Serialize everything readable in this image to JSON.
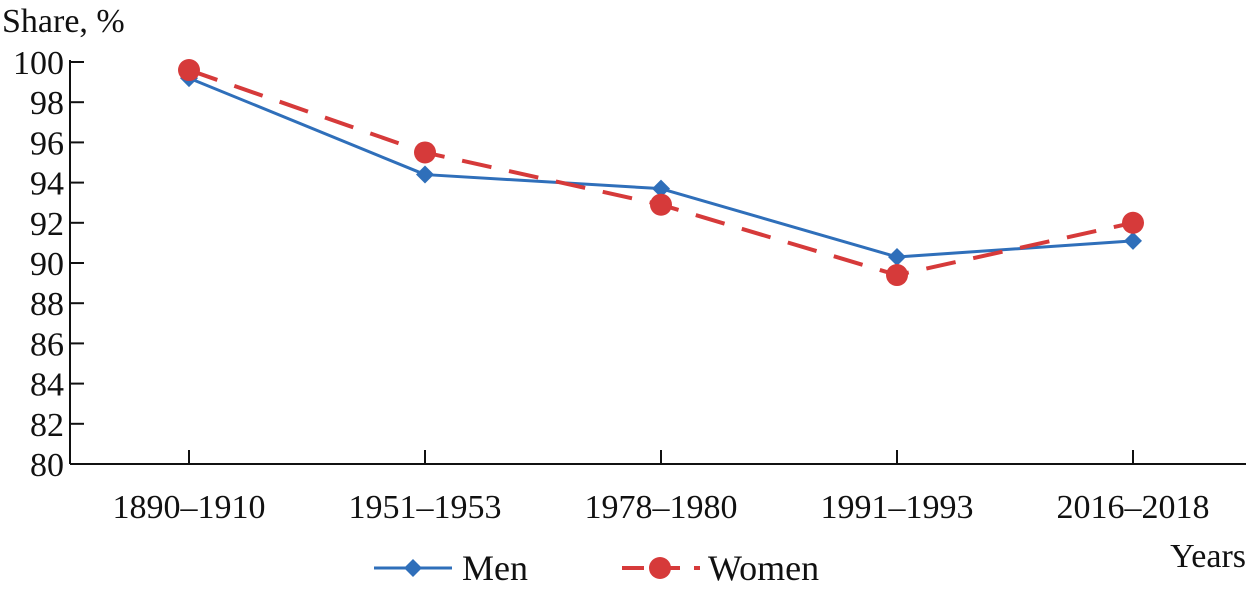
{
  "chart_data": {
    "type": "line",
    "categories": [
      "1890–1910",
      "1951–1953",
      "1978–1980",
      "1991–1993",
      "2016–2018"
    ],
    "series": [
      {
        "name": "Men",
        "values": [
          99.2,
          94.4,
          93.7,
          90.3,
          91.1
        ],
        "color": "#2f6fba",
        "style": "solid",
        "marker": "diamond"
      },
      {
        "name": "Women",
        "values": [
          99.6,
          95.5,
          92.9,
          89.4,
          92.0
        ],
        "color": "#d63a3a",
        "style": "dashed",
        "marker": "circle"
      }
    ],
    "ylabel": "Share, %",
    "xlabel": "Years",
    "ylim": [
      80,
      100
    ],
    "yticks": [
      80,
      82,
      84,
      86,
      88,
      90,
      92,
      94,
      96,
      98,
      100
    ],
    "grid": false,
    "legend": "bottom-center"
  }
}
